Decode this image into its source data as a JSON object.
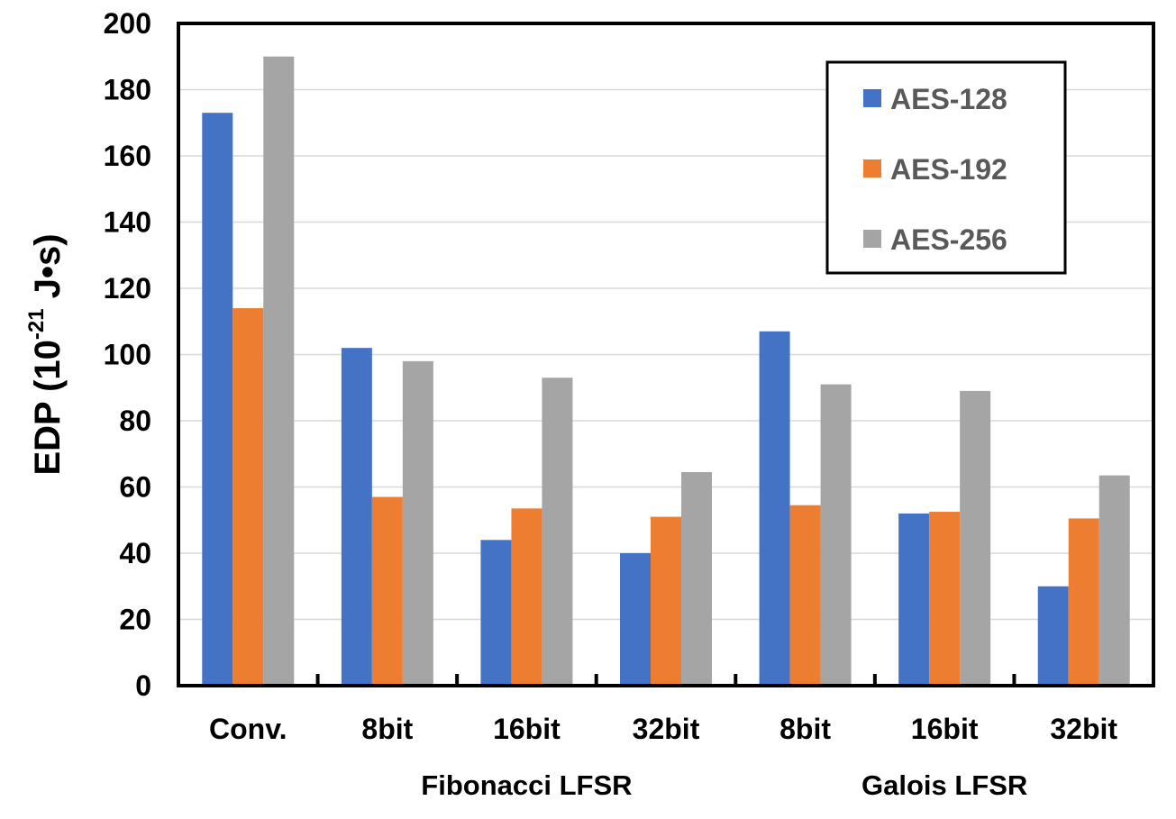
{
  "chart_data": {
    "type": "bar",
    "categories": [
      "Conv.",
      "8bit",
      "16bit",
      "32bit",
      "8bit",
      "16bit",
      "32bit"
    ],
    "groups": [
      {
        "label": "",
        "span": [
          0,
          0
        ]
      },
      {
        "label": "Fibonacci LFSR",
        "span": [
          1,
          3
        ]
      },
      {
        "label": "Galois LFSR",
        "span": [
          4,
          6
        ]
      }
    ],
    "series": [
      {
        "name": "AES-128",
        "color": "#4472C4",
        "values": [
          173,
          102,
          44,
          40,
          107,
          52,
          30
        ]
      },
      {
        "name": "AES-192",
        "color": "#ED7D31",
        "values": [
          114,
          57,
          53.5,
          51,
          54.5,
          52.5,
          50.5
        ]
      },
      {
        "name": "AES-256",
        "color": "#A5A5A5",
        "values": [
          190,
          98,
          93,
          64.5,
          91,
          89,
          63.5
        ]
      }
    ],
    "ylabel_main": "EDP (10",
    "ylabel_sup": "-21",
    "ylabel_unit": " J•s)",
    "ylim": [
      0,
      200
    ],
    "yticks": [
      "0",
      "20",
      "40",
      "60",
      "80",
      "100",
      "120",
      "140",
      "160",
      "180",
      "200"
    ],
    "grid": true,
    "legend_position": "top-right"
  }
}
